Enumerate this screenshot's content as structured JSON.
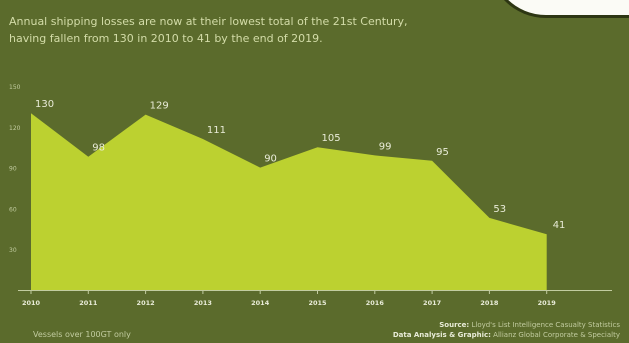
{
  "subtitle": "Annual shipping losses are now at their lowest total of the 21st Century, having fallen from 130 in 2010 to 41 by the end of 2019.",
  "footnote": "Vessels over 100GT only",
  "source": {
    "source_label": "Source:",
    "source_text": "Lloyd's List Intelligence Casualty Statistics",
    "analysis_label": "Data Analysis & Graphic:",
    "analysis_text": "Allianz Global Corporate & Specialty"
  },
  "colors": {
    "background": "#5b6b2c",
    "area_fill": "#bcd130",
    "axis": "#c2cca0",
    "text": "#e9ecd8"
  },
  "chart_data": {
    "type": "area",
    "x": [
      "2010",
      "2011",
      "2012",
      "2013",
      "2014",
      "2015",
      "2016",
      "2017",
      "2018",
      "2019"
    ],
    "series": [
      {
        "values": [
          130,
          98,
          129,
          111,
          90,
          105,
          99,
          95,
          53,
          41
        ]
      }
    ],
    "ylim": [
      0,
      150
    ],
    "yticks": [
      30,
      60,
      90,
      120,
      150
    ],
    "data_labels": [
      "130",
      "98",
      "129",
      "111",
      "90",
      "105",
      "99",
      "95",
      "53",
      "41"
    ],
    "grid": false
  }
}
